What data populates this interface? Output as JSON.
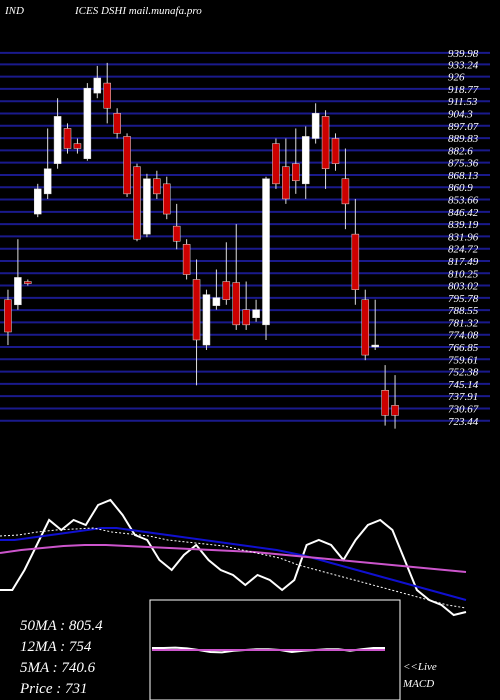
{
  "chart_data": {
    "type": "candlestick",
    "title": "IND",
    "subtitle": "ICES DSHI mail.munafa.pro",
    "up_color": "#ffffff",
    "down_color": "#cc0000",
    "grid_color": "#1a1a8c",
    "ylim": [
      718,
      940.5
    ],
    "yticks": [
      939.98,
      933.24,
      926,
      918.77,
      911.53,
      904.3,
      897.07,
      889.83,
      882.6,
      875.36,
      868.13,
      860.9,
      853.66,
      846.42,
      839.19,
      831.96,
      824.72,
      817.49,
      810.25,
      803.02,
      795.78,
      788.55,
      781.32,
      774.08,
      766.85,
      759.61,
      752.38,
      745.14,
      737.91,
      730.67,
      723.44
    ],
    "open": [
      794.7,
      791.7,
      805.4,
      845.1,
      857.0,
      874.8,
      895.5,
      886.6,
      877.7,
      916.3,
      922.2,
      904.4,
      890.8,
      873.0,
      833.3,
      865.9,
      862.9,
      838.0,
      827.3,
      806.6,
      768.0,
      791.2,
      805.4,
      804.8,
      788.8,
      784.1,
      779.9,
      886.6,
      873.0,
      874.8,
      862.9,
      889.6,
      902.6,
      889.6,
      865.9,
      833.3,
      794.7,
      766.9,
      741.4,
      732.5
    ],
    "high": [
      800.6,
      830.3,
      806.6,
      862.9,
      895.5,
      913.3,
      898.5,
      889.6,
      922.2,
      932.3,
      934.1,
      907.4,
      892.6,
      874.8,
      868.8,
      870.6,
      867.1,
      851.1,
      830.3,
      818.4,
      800.6,
      812.5,
      828.5,
      839.2,
      805.4,
      794.7,
      867.1,
      889.6,
      889.6,
      895.5,
      896.7,
      910.3,
      906.2,
      892.6,
      883.7,
      854.0,
      800.6,
      794.7,
      756.2,
      750.3
    ],
    "low": [
      768.0,
      788.8,
      803.0,
      843.3,
      854.0,
      871.8,
      880.7,
      880.7,
      876.5,
      913.3,
      898.5,
      889.6,
      855.2,
      829.1,
      831.5,
      854.0,
      842.1,
      824.4,
      806.6,
      744.3,
      765.1,
      788.8,
      791.7,
      776.9,
      776.9,
      781.7,
      771.0,
      859.9,
      851.1,
      857.0,
      854.0,
      886.6,
      859.9,
      870.6,
      836.2,
      791.7,
      759.1,
      765.1,
      720.6,
      718.8
    ],
    "close": [
      775.7,
      807.8,
      804.2,
      859.9,
      871.8,
      902.6,
      883.7,
      883.7,
      919.2,
      925.2,
      907.4,
      892.6,
      857.0,
      830.3,
      865.9,
      857.0,
      845.1,
      829.1,
      809.5,
      771.0,
      797.7,
      795.9,
      794.7,
      779.9,
      779.9,
      788.8,
      865.9,
      862.9,
      854.0,
      864.7,
      890.8,
      904.4,
      871.8,
      874.8,
      851.1,
      800.6,
      762.1,
      768.0,
      726.6,
      726.6
    ],
    "indicator": {
      "ylim": [
        0,
        120
      ],
      "series": [
        {
          "color": "#ffffff",
          "style": "solid",
          "values": [
            30,
            30,
            50,
            75,
            100,
            90,
            100,
            95,
            115,
            120,
            105,
            85,
            80,
            60,
            50,
            65,
            75,
            60,
            50,
            45,
            35,
            45,
            40,
            30,
            40,
            75,
            80,
            75,
            60,
            80,
            95,
            100,
            90,
            60,
            30,
            20,
            15,
            5,
            8
          ]
        },
        {
          "color": "#1010d0",
          "style": "solid",
          "values": [
            80,
            80,
            82,
            84,
            86,
            88,
            90,
            92,
            92,
            90,
            88,
            86,
            84,
            82,
            80,
            78,
            76,
            74,
            72,
            70,
            67,
            64,
            60,
            56,
            52,
            48,
            44,
            40,
            36,
            32,
            28,
            24,
            20
          ]
        },
        {
          "color": "#cc55cc",
          "style": "solid",
          "values": [
            67,
            70,
            72,
            74,
            75,
            75,
            74,
            73,
            72,
            71,
            70,
            69,
            68,
            66,
            64,
            62,
            60,
            58,
            56,
            54,
            52,
            50,
            48
          ]
        },
        {
          "color": "#ffffff",
          "style": "dotted",
          "values": [
            84,
            85,
            88,
            90,
            91,
            92,
            88,
            86,
            84,
            80,
            78,
            76,
            74,
            70,
            66,
            62,
            55,
            50,
            45,
            40,
            35,
            30,
            25,
            20,
            15,
            12
          ]
        }
      ]
    },
    "macd": {
      "ylim": [
        0,
        100
      ],
      "series": [
        {
          "color": "#ffffff",
          "values": [
            55,
            55,
            56,
            54,
            50,
            45,
            44,
            48,
            50,
            52,
            52,
            50,
            45,
            48,
            50,
            52,
            52,
            48,
            52,
            55,
            55
          ]
        },
        {
          "color": "#cc55cc",
          "values": [
            50,
            50,
            50,
            50,
            50,
            50,
            50,
            50,
            50,
            50,
            50,
            50,
            50,
            50,
            50,
            50,
            50,
            50,
            50,
            50,
            50
          ]
        }
      ]
    },
    "labels": [
      "50MA : 805.4",
      "12MA : 754",
      "5MA : 740.6",
      "Price   : 731"
    ],
    "macd_labels": [
      "<<Live",
      "MACD"
    ]
  }
}
